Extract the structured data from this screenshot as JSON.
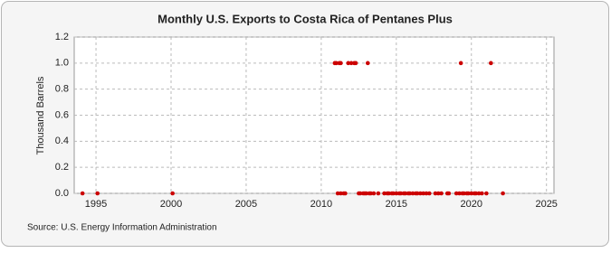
{
  "chart_data": {
    "type": "scatter",
    "title": "Monthly U.S. Exports to Costa Rica of Pentanes Plus",
    "ylabel": "Thousand Barrels",
    "source": "Source: U.S. Energy Information Administration",
    "color": "#cc0000",
    "x": [
      2010.9,
      2011.0,
      2011.2,
      2011.3,
      2011.8,
      2012.0,
      2012.2,
      2012.3,
      2013.1,
      2019.3,
      2021.3,
      1994.1,
      1995.1,
      2000.1,
      2011.1,
      2011.3,
      2011.5,
      2011.6,
      2012.5,
      2012.6,
      2012.8,
      2012.9,
      2013.0,
      2013.2,
      2013.3,
      2013.5,
      2013.8,
      2014.2,
      2014.4,
      2014.5,
      2014.7,
      2014.8,
      2015.0,
      2015.2,
      2015.3,
      2015.5,
      2015.6,
      2015.8,
      2015.9,
      2016.1,
      2016.3,
      2016.4,
      2016.6,
      2016.8,
      2017.0,
      2017.2,
      2017.6,
      2017.8,
      2018.0,
      2018.4,
      2018.5,
      2019.0,
      2019.2,
      2019.4,
      2019.5,
      2019.7,
      2019.8,
      2020.0,
      2020.2,
      2020.3,
      2020.5,
      2020.7,
      2021.0,
      2022.1
    ],
    "values": [
      1,
      1,
      1,
      1,
      1,
      1,
      1,
      1,
      1,
      1,
      1,
      0,
      0,
      0,
      0,
      0,
      0,
      0,
      0,
      0,
      0,
      0,
      0,
      0,
      0,
      0,
      0,
      0,
      0,
      0,
      0,
      0,
      0,
      0,
      0,
      0,
      0,
      0,
      0,
      0,
      0,
      0,
      0,
      0,
      0,
      0,
      0,
      0,
      0,
      0,
      0,
      0,
      0,
      0,
      0,
      0,
      0,
      0,
      0,
      0,
      0,
      0,
      0,
      0
    ],
    "xlim": [
      1993.55,
      2025.5
    ],
    "xticks": [
      1995,
      2000,
      2005,
      2010,
      2015,
      2020,
      2025
    ],
    "ylim": [
      0,
      1.2
    ],
    "yticks": [
      {
        "value": 0,
        "label": "0.0"
      },
      {
        "value": 0.2,
        "label": "0.2"
      },
      {
        "value": 0.4,
        "label": "0.4"
      },
      {
        "value": 0.6,
        "label": "0.6"
      },
      {
        "value": 0.8,
        "label": "0.8"
      },
      {
        "value": 1,
        "label": "1.0"
      },
      {
        "value": 1.2,
        "label": "1.2"
      }
    ],
    "grid": true
  }
}
